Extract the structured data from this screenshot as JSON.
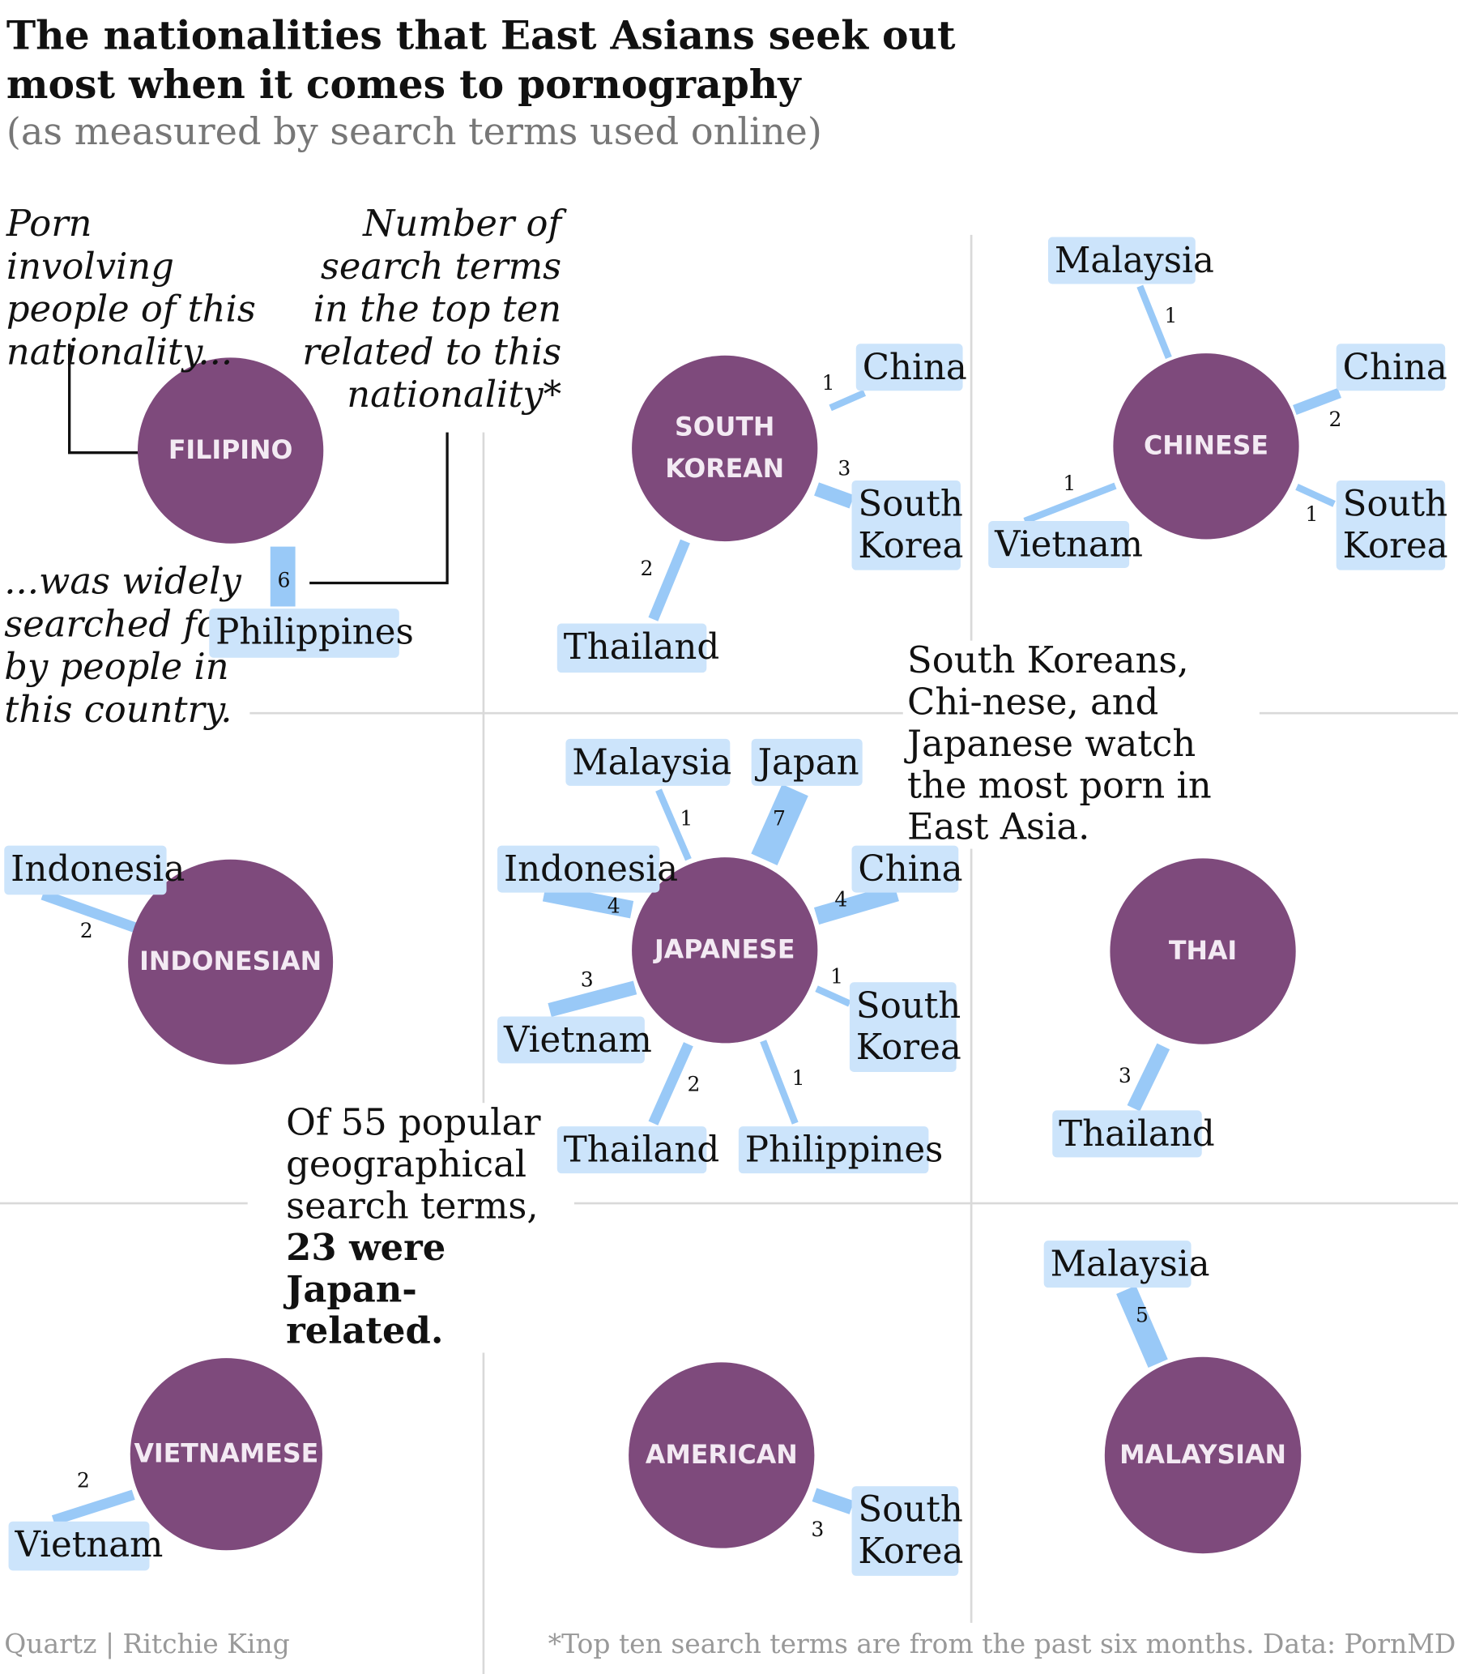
{
  "title": "The nationalities that East Asians seek out most when it comes to pornography",
  "subtitle": "(as measured by search terms used online)",
  "legend": {
    "porn_involving": "Porn involving people of this nationality...",
    "number_of_terms": "Number of search terms in the top ten related to this nationality*",
    "was_searched": "...was widely searched for by people in this country."
  },
  "annotations": {
    "east_asia": "South Koreans, Chi-nese, and Japanese watch the most porn in East Asia.",
    "of_55": "Of 55 popular geographical search terms,",
    "japan_related": "23 were Japan-related."
  },
  "colors": {
    "node": "#7e4a7c",
    "label_bg": "#cce4fb",
    "connector": "#99c9f7",
    "grid": "#d9d9d9"
  },
  "nodes": [
    {
      "name": "FILIPINO",
      "edges": [
        {
          "country": "Philippines",
          "count": 6
        }
      ]
    },
    {
      "name": "SOUTH KOREAN",
      "edges": [
        {
          "country": "China",
          "count": 1
        },
        {
          "country": "South Korea",
          "count": 3
        },
        {
          "country": "Thailand",
          "count": 2
        }
      ]
    },
    {
      "name": "CHINESE",
      "edges": [
        {
          "country": "Malaysia",
          "count": 1
        },
        {
          "country": "China",
          "count": 2
        },
        {
          "country": "South Korea",
          "count": 1
        },
        {
          "country": "Vietnam",
          "count": 1
        }
      ]
    },
    {
      "name": "INDONESIAN",
      "edges": [
        {
          "country": "Indonesia",
          "count": 2
        }
      ]
    },
    {
      "name": "JAPANESE",
      "edges": [
        {
          "country": "Malaysia",
          "count": 1
        },
        {
          "country": "Japan",
          "count": 7
        },
        {
          "country": "Indonesia",
          "count": 4
        },
        {
          "country": "China",
          "count": 4
        },
        {
          "country": "South Korea",
          "count": 1
        },
        {
          "country": "Vietnam",
          "count": 3
        },
        {
          "country": "Thailand",
          "count": 2
        },
        {
          "country": "Philippines",
          "count": 1
        }
      ]
    },
    {
      "name": "THAI",
      "edges": [
        {
          "country": "Thailand",
          "count": 3
        }
      ]
    },
    {
      "name": "VIETNAMESE",
      "edges": [
        {
          "country": "Vietnam",
          "count": 2
        }
      ]
    },
    {
      "name": "AMERICAN",
      "edges": [
        {
          "country": "South Korea",
          "count": 3
        }
      ]
    },
    {
      "name": "MALAYSIAN",
      "edges": [
        {
          "country": "Malaysia",
          "count": 5
        }
      ]
    }
  ],
  "footer": {
    "credit": "Quartz | Ritchie King",
    "source": "*Top ten search terms are from the past six months. Data: PornMD"
  }
}
